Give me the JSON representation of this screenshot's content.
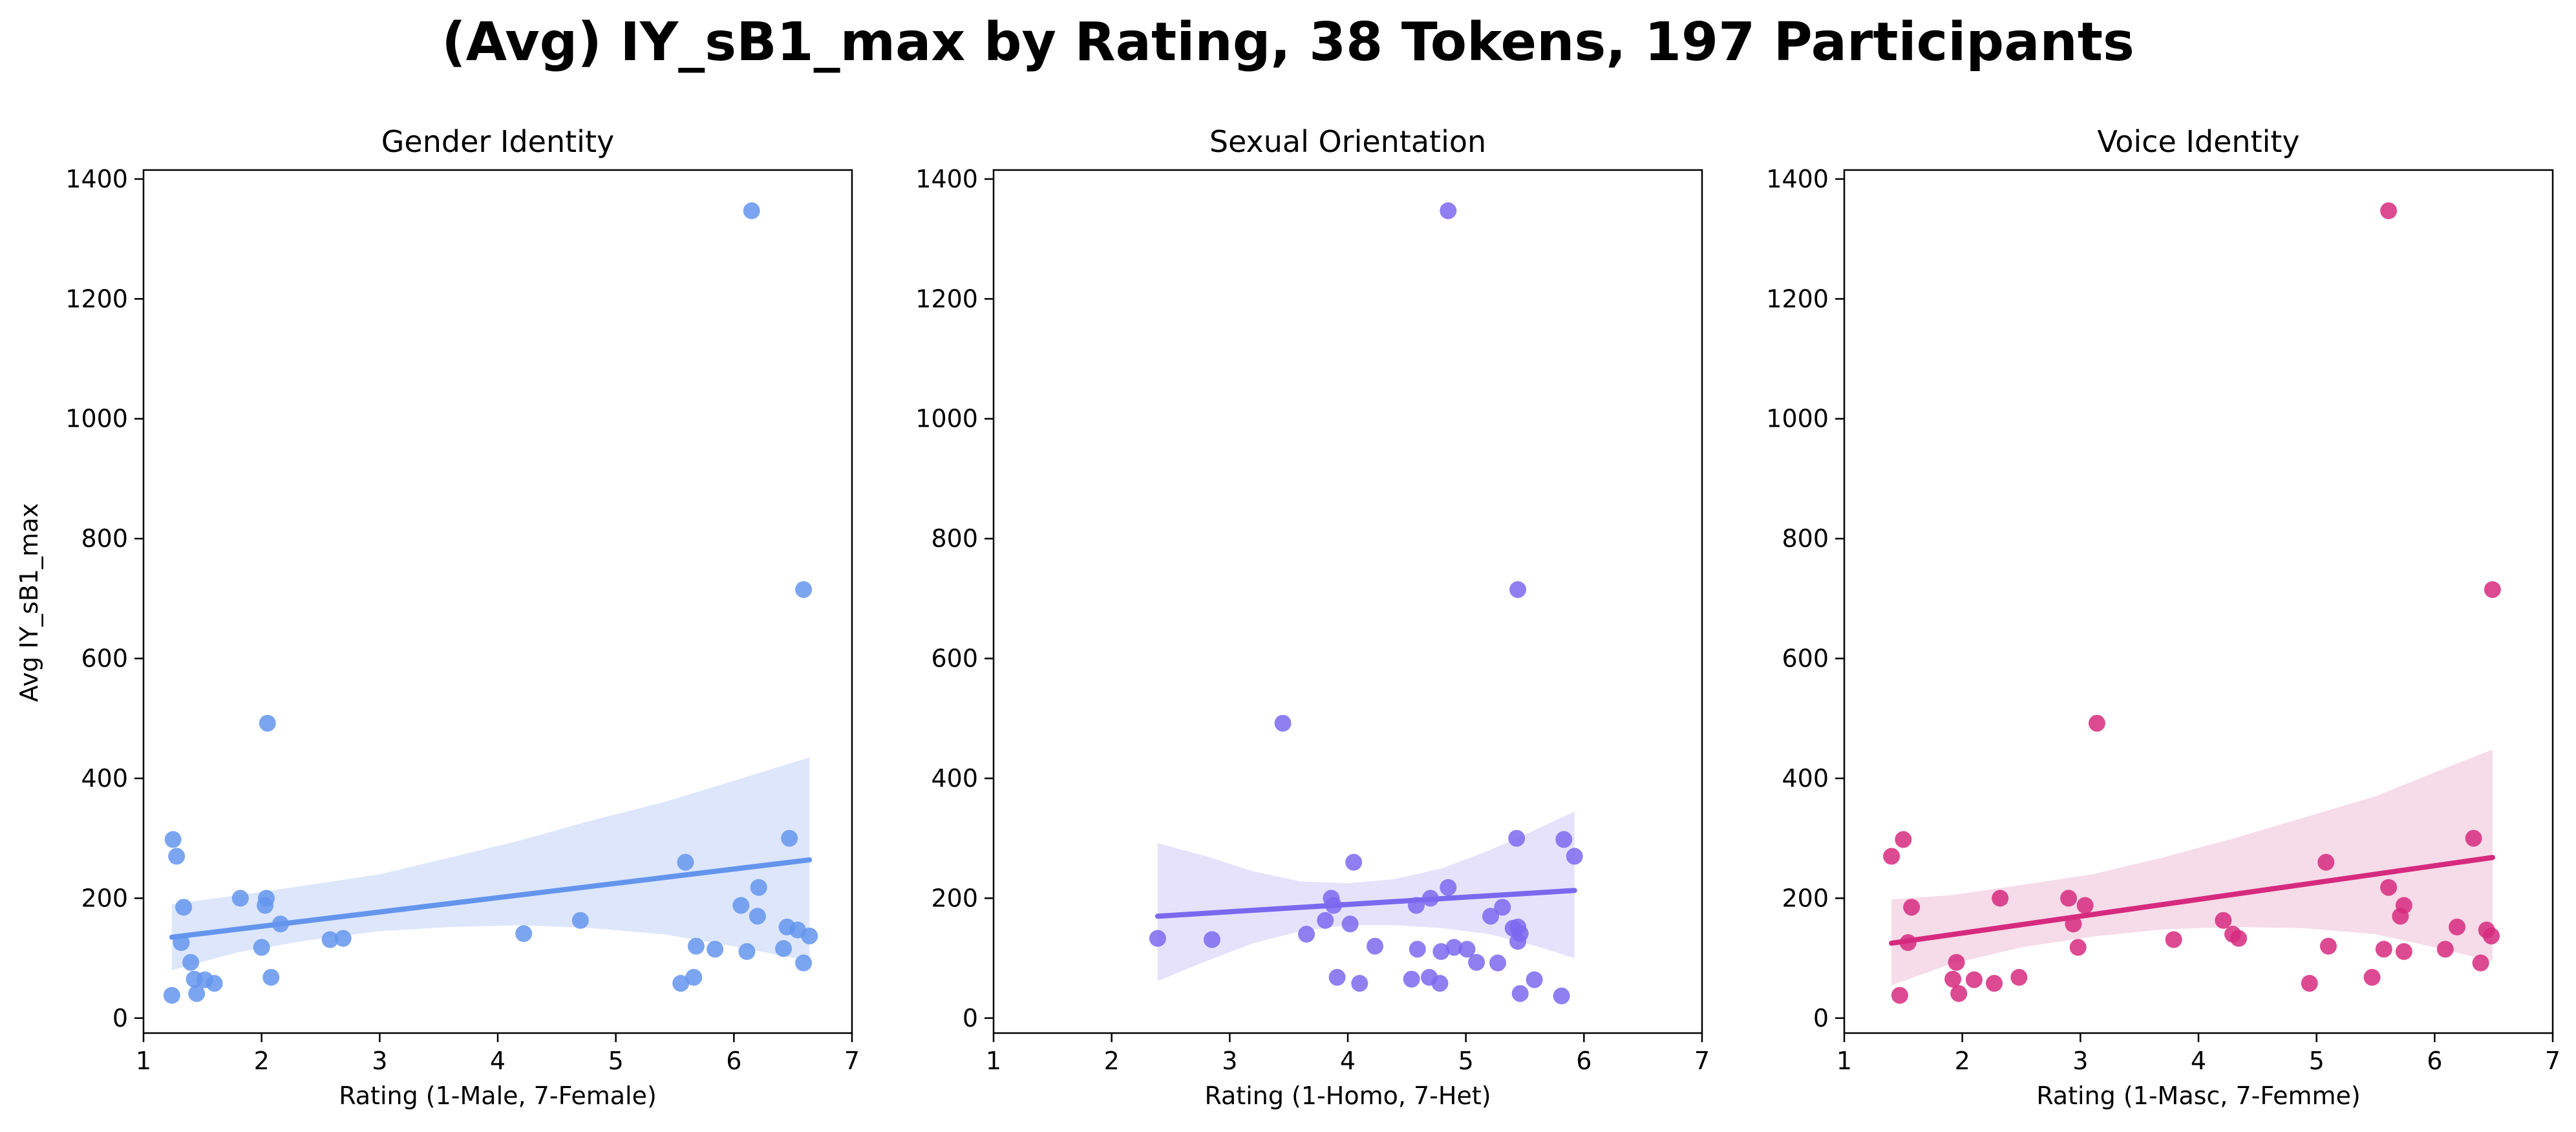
{
  "title": "(Avg) IY_sB1_max by Rating, 38 Tokens, 197 Participants",
  "chart_data": [
    {
      "type": "scatter",
      "title": "Gender Identity",
      "xlabel": "Rating (1-Male, 7-Female)",
      "ylabel": "Avg IY_sB1_max",
      "xlim": [
        1,
        7
      ],
      "ylim": [
        -25,
        1415
      ],
      "xticks": [
        1,
        2,
        3,
        4,
        5,
        6,
        7
      ],
      "yticks": [
        0,
        200,
        400,
        600,
        800,
        1000,
        1200,
        1400
      ],
      "color": "#6495ed",
      "band_color": "#dde6fb",
      "points": [
        [
          1.24,
          38
        ],
        [
          1.25,
          298
        ],
        [
          1.28,
          270
        ],
        [
          1.32,
          126
        ],
        [
          1.34,
          185
        ],
        [
          1.4,
          93
        ],
        [
          1.43,
          65
        ],
        [
          1.45,
          41
        ],
        [
          1.52,
          64
        ],
        [
          1.6,
          58
        ],
        [
          1.82,
          200
        ],
        [
          2.0,
          118
        ],
        [
          2.03,
          188
        ],
        [
          2.04,
          200
        ],
        [
          2.05,
          492
        ],
        [
          2.08,
          68
        ],
        [
          2.16,
          157
        ],
        [
          2.58,
          131
        ],
        [
          2.69,
          133
        ],
        [
          4.22,
          141
        ],
        [
          4.7,
          163
        ],
        [
          5.55,
          58
        ],
        [
          5.59,
          260
        ],
        [
          5.66,
          68
        ],
        [
          5.68,
          120
        ],
        [
          5.84,
          115
        ],
        [
          6.06,
          188
        ],
        [
          6.11,
          111
        ],
        [
          6.15,
          1347
        ],
        [
          6.2,
          170
        ],
        [
          6.21,
          218
        ],
        [
          6.42,
          116
        ],
        [
          6.45,
          152
        ],
        [
          6.47,
          300
        ],
        [
          6.54,
          147
        ],
        [
          6.59,
          92
        ],
        [
          6.59,
          715
        ],
        [
          6.64,
          137
        ]
      ],
      "fit": {
        "x": [
          1.24,
          6.64
        ],
        "y": [
          135,
          264
        ]
      },
      "ci": {
        "x": [
          1.24,
          1.8,
          2.4,
          3.0,
          3.6,
          4.2,
          4.8,
          5.4,
          6.0,
          6.64
        ],
        "upper": [
          190,
          205,
          222,
          240,
          268,
          297,
          330,
          360,
          396,
          435
        ],
        "lower": [
          80,
          110,
          130,
          145,
          152,
          155,
          150,
          140,
          120,
          95
        ]
      }
    },
    {
      "type": "scatter",
      "title": "Sexual Orientation",
      "xlabel": "Rating (1-Homo, 7-Het)",
      "xlim": [
        1,
        7
      ],
      "ylim": [
        -25,
        1415
      ],
      "xticks": [
        1,
        2,
        3,
        4,
        5,
        6,
        7
      ],
      "yticks": [
        0,
        200,
        400,
        600,
        800,
        1000,
        1200,
        1400
      ],
      "color": "#7b68ee",
      "band_color": "#e6e2fb",
      "points": [
        [
          2.39,
          133
        ],
        [
          2.85,
          131
        ],
        [
          3.45,
          492
        ],
        [
          3.65,
          140
        ],
        [
          3.81,
          163
        ],
        [
          3.86,
          200
        ],
        [
          3.88,
          188
        ],
        [
          3.91,
          68
        ],
        [
          4.02,
          157
        ],
        [
          4.05,
          260
        ],
        [
          4.1,
          58
        ],
        [
          4.23,
          120
        ],
        [
          4.54,
          65
        ],
        [
          4.58,
          188
        ],
        [
          4.59,
          115
        ],
        [
          4.69,
          68
        ],
        [
          4.7,
          200
        ],
        [
          4.78,
          58
        ],
        [
          4.79,
          111
        ],
        [
          4.85,
          218
        ],
        [
          4.85,
          1347
        ],
        [
          4.9,
          118
        ],
        [
          5.01,
          115
        ],
        [
          5.09,
          93
        ],
        [
          5.21,
          170
        ],
        [
          5.27,
          92
        ],
        [
          5.31,
          185
        ],
        [
          5.4,
          150
        ],
        [
          5.43,
          300
        ],
        [
          5.44,
          128
        ],
        [
          5.44,
          152
        ],
        [
          5.44,
          715
        ],
        [
          5.46,
          141
        ],
        [
          5.46,
          41
        ],
        [
          5.58,
          64
        ],
        [
          5.81,
          37
        ],
        [
          5.83,
          298
        ],
        [
          5.92,
          270
        ]
      ],
      "fit": {
        "x": [
          2.39,
          5.92
        ],
        "y": [
          170,
          213
        ]
      },
      "ci": {
        "x": [
          2.39,
          2.8,
          3.2,
          3.6,
          4.0,
          4.4,
          4.8,
          5.2,
          5.6,
          5.92
        ],
        "upper": [
          292,
          270,
          245,
          228,
          225,
          232,
          250,
          280,
          315,
          345
        ],
        "lower": [
          62,
          95,
          125,
          145,
          155,
          155,
          150,
          140,
          120,
          100
        ]
      }
    },
    {
      "type": "scatter",
      "title": "Voice Identity",
      "xlabel": "Rating (1-Masc, 7-Femme)",
      "xlim": [
        1,
        7
      ],
      "ylim": [
        -25,
        1415
      ],
      "xticks": [
        1,
        2,
        3,
        4,
        5,
        6,
        7
      ],
      "yticks": [
        0,
        200,
        400,
        600,
        800,
        1000,
        1200,
        1400
      ],
      "color": "#d62a7f",
      "band_color": "#f6dbe8",
      "points": [
        [
          1.4,
          270
        ],
        [
          1.47,
          38
        ],
        [
          1.5,
          298
        ],
        [
          1.54,
          126
        ],
        [
          1.57,
          185
        ],
        [
          1.92,
          65
        ],
        [
          1.95,
          93
        ],
        [
          1.97,
          41
        ],
        [
          2.1,
          64
        ],
        [
          2.27,
          58
        ],
        [
          2.32,
          200
        ],
        [
          2.48,
          68
        ],
        [
          2.9,
          200
        ],
        [
          2.94,
          157
        ],
        [
          2.98,
          118
        ],
        [
          3.04,
          188
        ],
        [
          3.14,
          492
        ],
        [
          3.79,
          131
        ],
        [
          4.21,
          163
        ],
        [
          4.29,
          140
        ],
        [
          4.34,
          133
        ],
        [
          4.94,
          58
        ],
        [
          5.08,
          260
        ],
        [
          5.1,
          120
        ],
        [
          5.47,
          68
        ],
        [
          5.57,
          115
        ],
        [
          5.61,
          218
        ],
        [
          5.61,
          1347
        ],
        [
          5.71,
          170
        ],
        [
          5.74,
          111
        ],
        [
          5.74,
          188
        ],
        [
          6.09,
          115
        ],
        [
          6.19,
          152
        ],
        [
          6.33,
          300
        ],
        [
          6.39,
          92
        ],
        [
          6.44,
          147
        ],
        [
          6.48,
          137
        ],
        [
          6.49,
          715
        ]
      ],
      "fit": {
        "x": [
          1.4,
          6.49
        ],
        "y": [
          125,
          268
        ]
      },
      "ci": {
        "x": [
          1.4,
          1.9,
          2.5,
          3.1,
          3.7,
          4.3,
          4.9,
          5.5,
          6.0,
          6.49
        ],
        "upper": [
          198,
          205,
          222,
          240,
          268,
          300,
          335,
          370,
          410,
          448
        ],
        "lower": [
          55,
          90,
          118,
          136,
          148,
          152,
          150,
          140,
          118,
          95
        ]
      }
    }
  ]
}
